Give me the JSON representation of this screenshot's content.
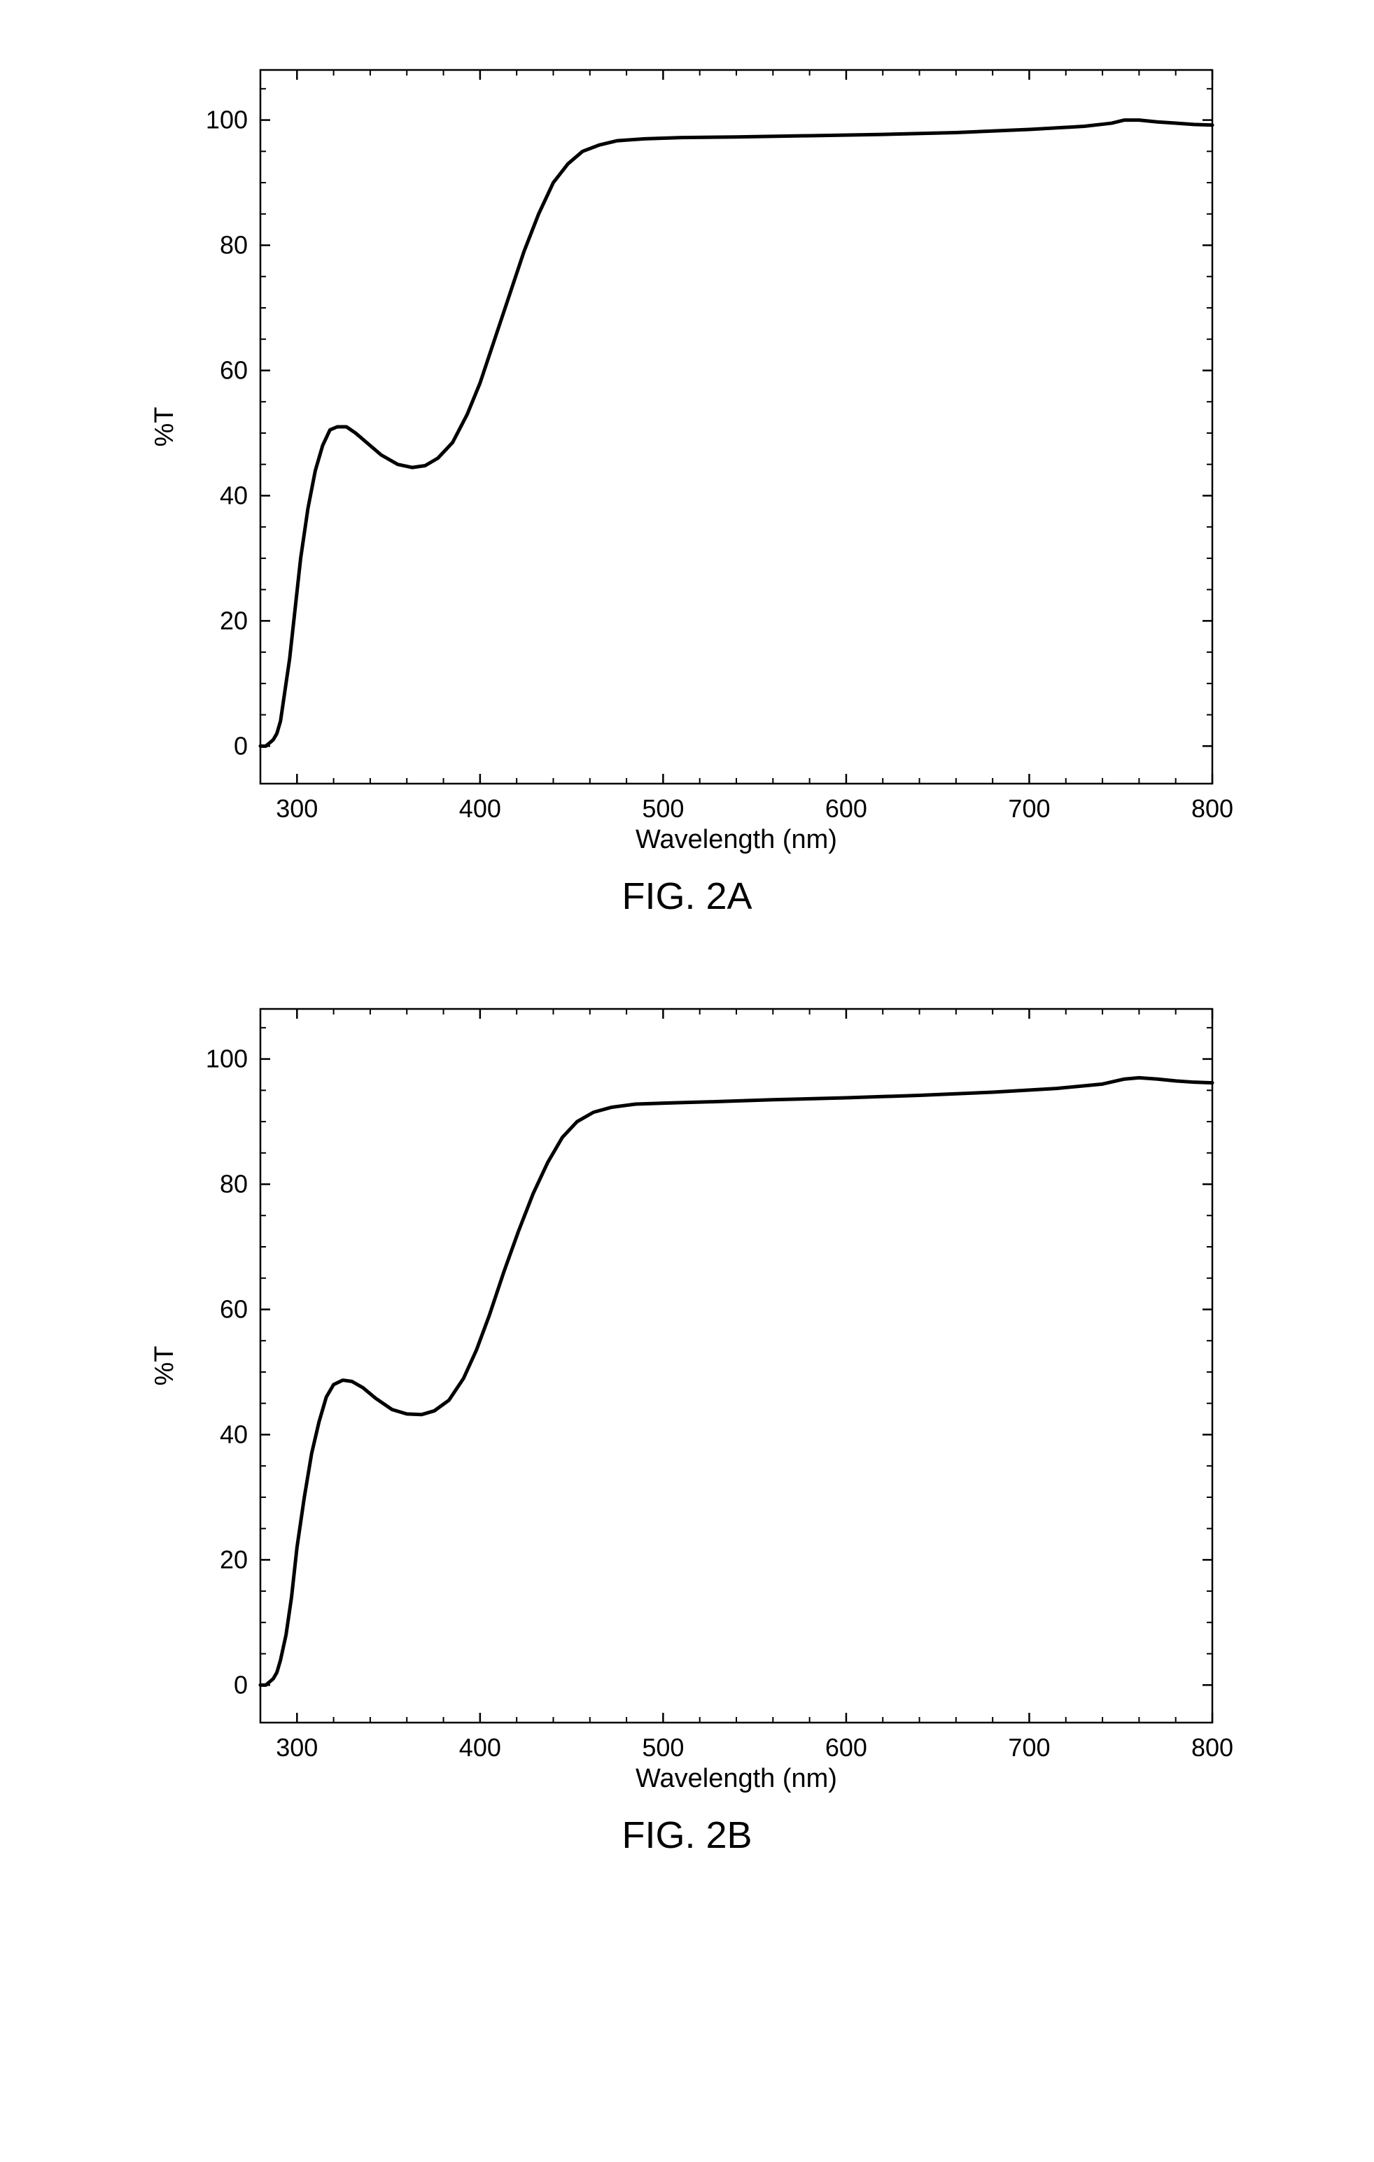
{
  "charts": [
    {
      "id": "fig2a",
      "title": "FIG. 2A",
      "type": "line",
      "xlabel": "Wavelength (nm)",
      "ylabel": "%T",
      "xlim": [
        280,
        800
      ],
      "ylim": [
        -6,
        108
      ],
      "xticks": [
        300,
        400,
        500,
        600,
        700,
        800
      ],
      "yticks": [
        0,
        20,
        40,
        60,
        80,
        100
      ],
      "line_color": "#000000",
      "line_width": 5,
      "axis_color": "#000000",
      "axis_width": 2.5,
      "background_color": "#ffffff",
      "tick_length_major": 14,
      "tick_length_minor": 8,
      "label_fontsize": 38,
      "tick_fontsize": 36,
      "title_fontsize": 54,
      "x_minor_ticks": [
        320,
        340,
        360,
        380,
        420,
        440,
        460,
        480,
        520,
        540,
        560,
        580,
        620,
        640,
        660,
        680,
        720,
        740,
        760,
        780
      ],
      "y_minor_ticks": [
        5,
        10,
        15,
        25,
        30,
        35,
        45,
        50,
        55,
        65,
        70,
        75,
        85,
        90,
        95,
        105
      ],
      "data": [
        [
          280,
          0
        ],
        [
          283,
          0
        ],
        [
          285,
          0.5
        ],
        [
          287,
          1
        ],
        [
          289,
          2
        ],
        [
          291,
          4
        ],
        [
          293,
          8
        ],
        [
          296,
          14
        ],
        [
          299,
          22
        ],
        [
          302,
          30
        ],
        [
          306,
          38
        ],
        [
          310,
          44
        ],
        [
          314,
          48
        ],
        [
          318,
          50.5
        ],
        [
          322,
          51
        ],
        [
          327,
          51
        ],
        [
          332,
          50
        ],
        [
          338,
          48.5
        ],
        [
          346,
          46.5
        ],
        [
          355,
          45
        ],
        [
          363,
          44.5
        ],
        [
          370,
          44.8
        ],
        [
          377,
          46
        ],
        [
          385,
          48.5
        ],
        [
          393,
          53
        ],
        [
          400,
          58
        ],
        [
          408,
          65
        ],
        [
          416,
          72
        ],
        [
          424,
          79
        ],
        [
          432,
          85
        ],
        [
          440,
          90
        ],
        [
          448,
          93
        ],
        [
          456,
          95
        ],
        [
          465,
          96
        ],
        [
          475,
          96.7
        ],
        [
          490,
          97
        ],
        [
          510,
          97.2
        ],
        [
          540,
          97.3
        ],
        [
          580,
          97.5
        ],
        [
          620,
          97.7
        ],
        [
          660,
          98
        ],
        [
          700,
          98.5
        ],
        [
          730,
          99
        ],
        [
          745,
          99.5
        ],
        [
          752,
          100
        ],
        [
          760,
          100
        ],
        [
          770,
          99.7
        ],
        [
          780,
          99.5
        ],
        [
          790,
          99.3
        ],
        [
          800,
          99.2
        ]
      ]
    },
    {
      "id": "fig2b",
      "title": "FIG. 2B",
      "type": "line",
      "xlabel": "Wavelength (nm)",
      "ylabel": "%T",
      "xlim": [
        280,
        800
      ],
      "ylim": [
        -6,
        108
      ],
      "xticks": [
        300,
        400,
        500,
        600,
        700,
        800
      ],
      "yticks": [
        0,
        20,
        40,
        60,
        80,
        100
      ],
      "line_color": "#000000",
      "line_width": 5,
      "axis_color": "#000000",
      "axis_width": 2.5,
      "background_color": "#ffffff",
      "tick_length_major": 14,
      "tick_length_minor": 8,
      "label_fontsize": 38,
      "tick_fontsize": 36,
      "title_fontsize": 54,
      "x_minor_ticks": [
        320,
        340,
        360,
        380,
        420,
        440,
        460,
        480,
        520,
        540,
        560,
        580,
        620,
        640,
        660,
        680,
        720,
        740,
        760,
        780
      ],
      "y_minor_ticks": [
        5,
        10,
        15,
        25,
        30,
        35,
        45,
        50,
        55,
        65,
        70,
        75,
        85,
        90,
        95,
        105
      ],
      "data": [
        [
          280,
          0
        ],
        [
          283,
          0
        ],
        [
          285,
          0.5
        ],
        [
          287,
          1
        ],
        [
          289,
          2
        ],
        [
          291,
          4
        ],
        [
          294,
          8
        ],
        [
          297,
          14
        ],
        [
          300,
          22
        ],
        [
          304,
          30
        ],
        [
          308,
          37
        ],
        [
          312,
          42
        ],
        [
          316,
          46
        ],
        [
          320,
          48
        ],
        [
          325,
          48.7
        ],
        [
          330,
          48.5
        ],
        [
          336,
          47.5
        ],
        [
          343,
          45.8
        ],
        [
          352,
          44
        ],
        [
          360,
          43.3
        ],
        [
          368,
          43.2
        ],
        [
          375,
          43.8
        ],
        [
          383,
          45.5
        ],
        [
          391,
          49
        ],
        [
          398,
          53.5
        ],
        [
          405,
          59
        ],
        [
          413,
          66
        ],
        [
          421,
          72.5
        ],
        [
          429,
          78.5
        ],
        [
          437,
          83.5
        ],
        [
          445,
          87.5
        ],
        [
          453,
          90
        ],
        [
          462,
          91.5
        ],
        [
          472,
          92.3
        ],
        [
          485,
          92.8
        ],
        [
          505,
          93
        ],
        [
          530,
          93.2
        ],
        [
          560,
          93.5
        ],
        [
          600,
          93.8
        ],
        [
          640,
          94.2
        ],
        [
          680,
          94.7
        ],
        [
          715,
          95.3
        ],
        [
          740,
          96
        ],
        [
          752,
          96.8
        ],
        [
          760,
          97
        ],
        [
          770,
          96.8
        ],
        [
          780,
          96.5
        ],
        [
          790,
          96.3
        ],
        [
          800,
          96.2
        ]
      ]
    }
  ]
}
